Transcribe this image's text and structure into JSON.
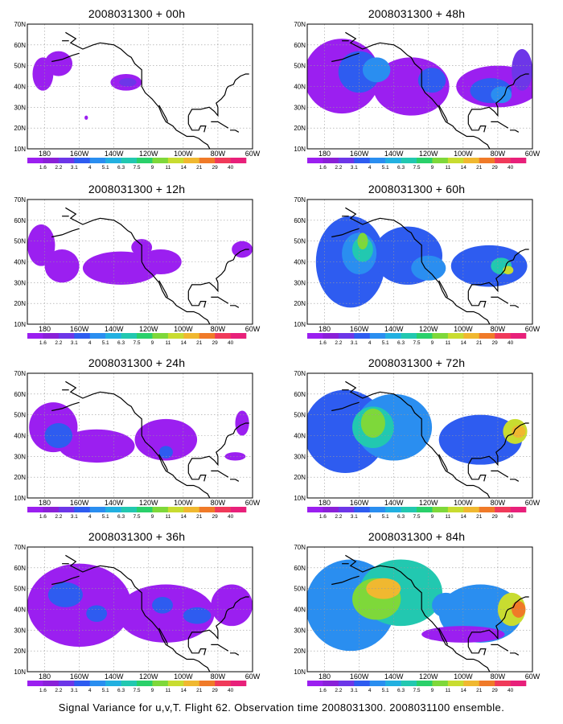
{
  "panels": [
    {
      "title": "2008031300 + 00h",
      "lead_hours": 0,
      "column": 0,
      "row": 0
    },
    {
      "title": "2008031300 + 48h",
      "lead_hours": 48,
      "column": 1,
      "row": 0
    },
    {
      "title": "2008031300 + 12h",
      "lead_hours": 12,
      "column": 0,
      "row": 1
    },
    {
      "title": "2008031300 + 60h",
      "lead_hours": 60,
      "column": 1,
      "row": 1
    },
    {
      "title": "2008031300 + 24h",
      "lead_hours": 24,
      "column": 0,
      "row": 2
    },
    {
      "title": "2008031300 + 72h",
      "lead_hours": 72,
      "column": 1,
      "row": 2
    },
    {
      "title": "2008031300 + 36h",
      "lead_hours": 36,
      "column": 0,
      "row": 3
    },
    {
      "title": "2008031300 + 84h",
      "lead_hours": 84,
      "column": 1,
      "row": 3
    }
  ],
  "axes": {
    "lat_labels": [
      "10N",
      "20N",
      "30N",
      "40N",
      "50N",
      "60N",
      "70N"
    ],
    "lat_values": [
      10,
      20,
      30,
      40,
      50,
      60,
      70
    ],
    "lon_labels": [
      "180",
      "160W",
      "140W",
      "120W",
      "100W",
      "80W",
      "60W"
    ],
    "lon_values": [
      -180,
      -160,
      -140,
      -120,
      -100,
      -80,
      -60
    ],
    "lon_range": [
      -190,
      -60
    ],
    "lat_range": [
      10,
      70
    ],
    "grid": "dotted"
  },
  "colorbar": {
    "labels": [
      "1.6",
      "2.2",
      "3.1",
      "4",
      "5.1",
      "6.3",
      "7.5",
      "9",
      "11",
      "14",
      "21",
      "29",
      "40"
    ],
    "colors": [
      "#9b1ff0",
      "#8a20d8",
      "#6d36e8",
      "#2e5cf0",
      "#2a8ef0",
      "#22b0e0",
      "#22c8b0",
      "#2ad06a",
      "#7ed83a",
      "#c8dc30",
      "#f0b830",
      "#f07a28",
      "#f03a5a",
      "#e8207a"
    ]
  },
  "map_colors": {
    "coastline": "#000000",
    "background": "#ffffff",
    "grid": "#9a9a9a"
  },
  "footer": "Signal Variance for u,v,T. Flight 62. Observation time 2008031300. 2008031100 ensemble."
}
